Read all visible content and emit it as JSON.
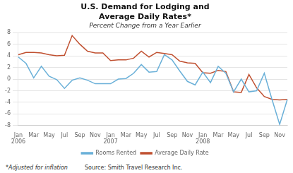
{
  "chart_data": {
    "type": "line",
    "title": "U.S. Demand for Lodging and\nAverage Daily Rates*",
    "subtitle": "Percent Change from a Year Earlier",
    "annotations": [
      "*Adjusted for inflation",
      "Source: Smith Travel Research Inc."
    ],
    "categories": [
      "Jan 2006",
      null,
      "Mar",
      null,
      "May",
      null,
      "Jul",
      null,
      "Sep",
      null,
      "Nov",
      null,
      "Jan 2007",
      null,
      "Mar",
      null,
      "May",
      null,
      "Jul",
      null,
      "Sep",
      null,
      "Nov",
      null,
      "Jan 2008",
      null,
      "Mar",
      null,
      "May",
      null,
      "Jul",
      null,
      "Sep",
      null,
      "Nov",
      null
    ],
    "series": [
      {
        "name": "Rooms Rented",
        "color": "#6ab0d8",
        "values": [
          3.8,
          2.7,
          0.2,
          2.2,
          0.5,
          -0.1,
          -1.6,
          -0.2,
          0.2,
          -0.2,
          -0.8,
          -0.8,
          -0.8,
          0.0,
          0.1,
          1.0,
          2.5,
          1.2,
          1.3,
          4.2,
          3.3,
          1.4,
          -0.4,
          -1.0,
          1.2,
          -0.6,
          2.2,
          1.0,
          -2.2,
          0.0,
          -2.2,
          -2.0,
          1.0,
          -3.5,
          -7.8,
          -3.5
        ]
      },
      {
        "name": "Average Daily Rate",
        "color": "#c05030",
        "values": [
          4.2,
          4.6,
          4.6,
          4.5,
          4.2,
          4.0,
          4.1,
          7.5,
          6.0,
          4.8,
          4.5,
          4.5,
          3.2,
          3.3,
          3.3,
          3.6,
          4.8,
          3.8,
          4.6,
          4.4,
          4.2,
          3.1,
          2.8,
          2.7,
          1.1,
          1.0,
          1.5,
          1.3,
          -2.2,
          -2.3,
          0.8,
          -1.5,
          -3.0,
          -3.5,
          -3.6,
          -3.5
        ]
      }
    ],
    "ylim": [
      -8,
      8
    ],
    "yticks": [
      -8,
      -6,
      -4,
      -2,
      0,
      2,
      4,
      6,
      8
    ],
    "grid": true,
    "legend": "bottom"
  }
}
